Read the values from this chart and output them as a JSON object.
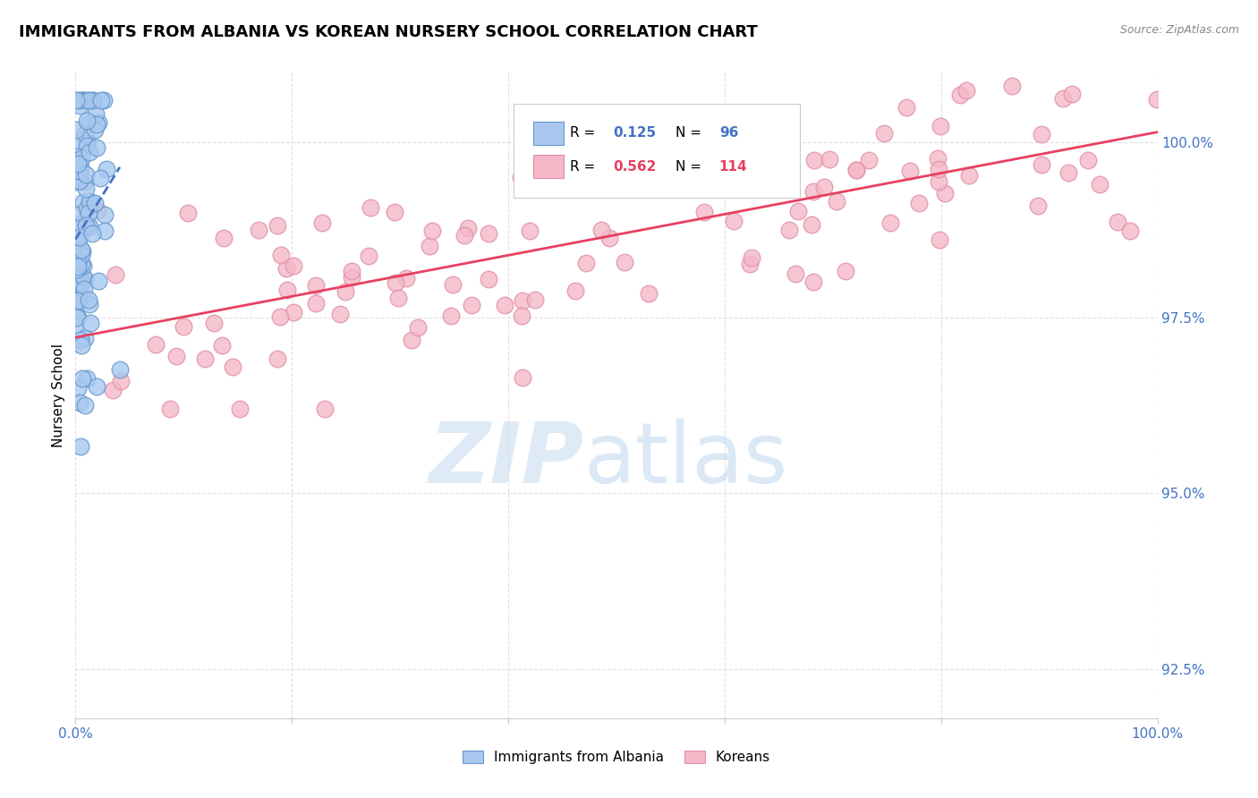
{
  "title": "IMMIGRANTS FROM ALBANIA VS KOREAN NURSERY SCHOOL CORRELATION CHART",
  "source": "Source: ZipAtlas.com",
  "ylabel": "Nursery School",
  "ytick_values": [
    92.5,
    95.0,
    97.5,
    100.0
  ],
  "albania_color": "#a8c8f0",
  "albania_edge": "#6699cc",
  "korean_color": "#f4b8c8",
  "korean_edge": "#e090a8",
  "trend_albania_color": "#4472c4",
  "trend_korean_color": "#e84060",
  "background_color": "#ffffff",
  "grid_color": "#e0e0e0",
  "title_fontsize": 13,
  "axis_label_color": "#4472c4",
  "watermark_zip_color": "#c8ddf0",
  "watermark_atlas_color": "#b0ccec",
  "legend_border_color": "#cccccc",
  "source_color": "#888888",
  "albania_R": "0.125",
  "albania_N": "96",
  "korean_R": "0.562",
  "korean_N": "114",
  "legend_label_albania": "Immigrants from Albania",
  "legend_label_korean": "Koreans"
}
